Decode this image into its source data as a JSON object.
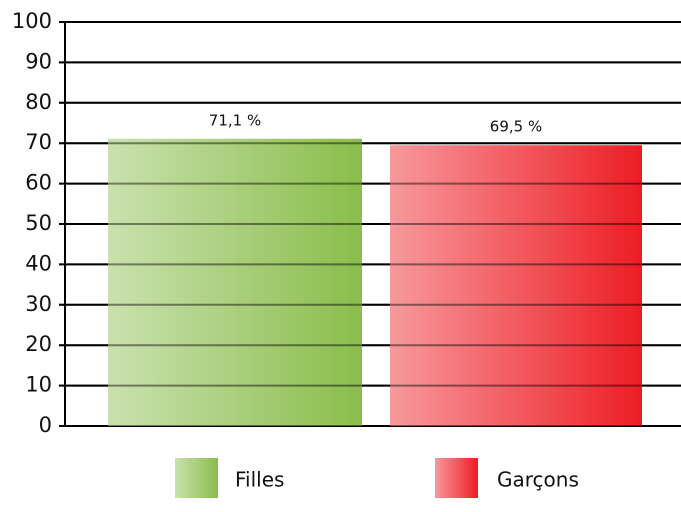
{
  "chart_data": {
    "type": "bar",
    "categories": [
      "Filles",
      "Garçons"
    ],
    "values": [
      71.1,
      69.5
    ],
    "value_labels": [
      "71,1 %",
      "69,5 %"
    ],
    "colors": [
      "#8abd4b",
      "#ed1c24"
    ],
    "ylim": [
      0,
      100
    ],
    "yticks": [
      0,
      10,
      20,
      30,
      40,
      50,
      60,
      70,
      80,
      90,
      100
    ],
    "grid": true,
    "legend": "bottom"
  }
}
